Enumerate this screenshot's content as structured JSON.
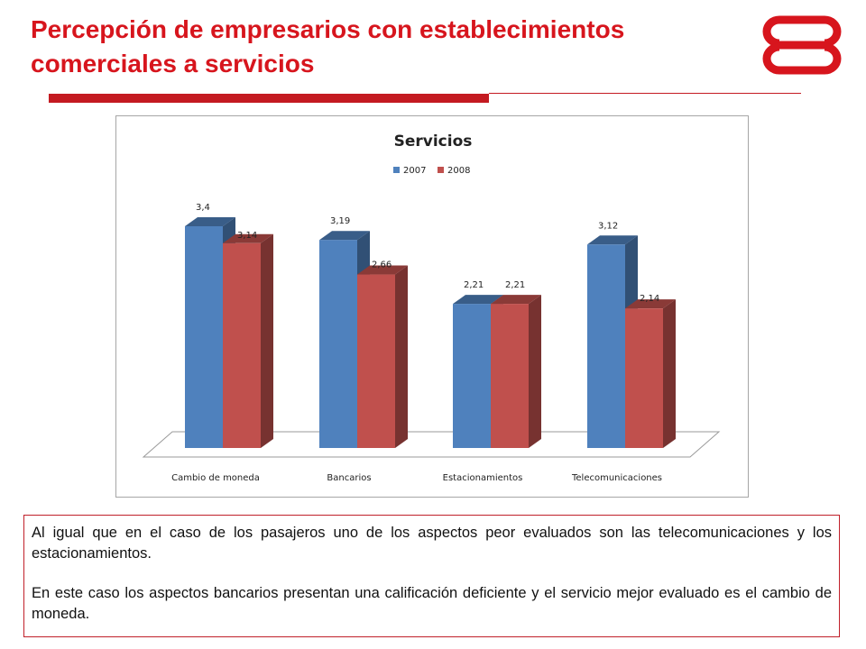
{
  "slide": {
    "title": "Percepción de empresarios con establecimientos comerciales a servicios",
    "paragraphs": [
      "Al igual que en el caso de los pasajeros uno de los aspectos peor evaluados son las telecomunicaciones y los estacionamientos.",
      "En este caso los aspectos bancarios presentan una calificación deficiente y el servicio mejor evaluado es el cambio de moneda."
    ]
  },
  "colors": {
    "accent": "#d7151d",
    "series_2007": "#4f81bd",
    "series_2008": "#c0504d"
  },
  "chart_data": {
    "type": "bar",
    "title": "Servicios",
    "categories": [
      "Cambio de moneda",
      "Bancarios",
      "Estacionamientos",
      "Telecomunicaciones"
    ],
    "series": [
      {
        "name": "2007",
        "values": [
          3.4,
          3.19,
          2.21,
          3.12
        ],
        "labels": [
          "3,4",
          "3,19",
          "2,21",
          "3,12"
        ]
      },
      {
        "name": "2008",
        "values": [
          3.14,
          2.66,
          2.21,
          2.14
        ],
        "labels": [
          "3,14",
          "2,66",
          "2,21",
          "2,14"
        ]
      }
    ],
    "ylim": [
      0,
      3.6
    ],
    "legend_position": "top",
    "grid": false,
    "style": "3d-clustered-column"
  }
}
